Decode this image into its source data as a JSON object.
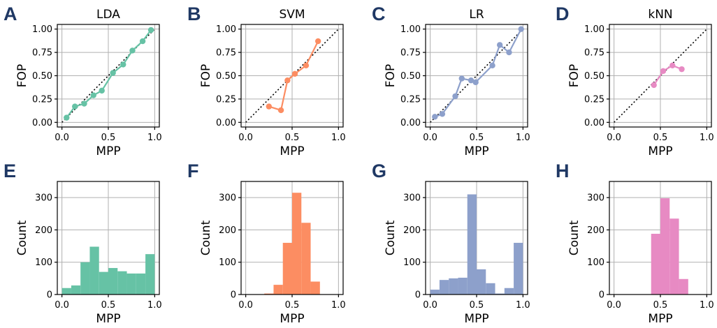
{
  "chart_data": [
    {
      "id": "A",
      "type": "line",
      "title": "LDA",
      "color": "#66c2a5",
      "xlabel": "MPP",
      "ylabel": "FOP",
      "xlim": [
        0,
        1
      ],
      "ylim": [
        0,
        1
      ],
      "xticks": [
        0.0,
        0.5,
        1.0
      ],
      "xtick_labels": [
        "0.0",
        "0.5",
        "1.0"
      ],
      "yticks": [
        0,
        0.25,
        0.5,
        0.75,
        1.0
      ],
      "ytick_labels": [
        "0.00",
        "0.25",
        "0.50",
        "0.75",
        "1.00"
      ],
      "reference_line": "y=x dotted",
      "x": [
        0.05,
        0.14,
        0.24,
        0.34,
        0.43,
        0.55,
        0.66,
        0.76,
        0.87,
        0.96
      ],
      "y": [
        0.05,
        0.17,
        0.2,
        0.29,
        0.34,
        0.53,
        0.62,
        0.77,
        0.87,
        0.99
      ]
    },
    {
      "id": "B",
      "type": "line",
      "title": "SVM",
      "color": "#fc8d62",
      "xlabel": "MPP",
      "ylabel": "FOP",
      "xlim": [
        0,
        1
      ],
      "ylim": [
        0,
        1
      ],
      "xticks": [
        0.0,
        0.5,
        1.0
      ],
      "xtick_labels": [
        "0.0",
        "0.5",
        "1.0"
      ],
      "yticks": [
        0,
        0.25,
        0.5,
        0.75,
        1.0
      ],
      "ytick_labels": [
        "0.00",
        "0.25",
        "0.50",
        "0.75",
        "1.00"
      ],
      "reference_line": "y=x dotted",
      "x": [
        0.25,
        0.38,
        0.45,
        0.53,
        0.65,
        0.78
      ],
      "y": [
        0.17,
        0.13,
        0.45,
        0.52,
        0.61,
        0.87
      ]
    },
    {
      "id": "C",
      "type": "line",
      "title": "LR",
      "color": "#8da0cb",
      "xlabel": "MPP",
      "ylabel": "FOP",
      "xlim": [
        0,
        1
      ],
      "ylim": [
        0,
        1
      ],
      "xticks": [
        0.0,
        0.5,
        1.0
      ],
      "xtick_labels": [
        "0.0",
        "0.5",
        "1.0"
      ],
      "yticks": [
        0,
        0.25,
        0.5,
        0.75,
        1.0
      ],
      "ytick_labels": [
        "0.00",
        "0.25",
        "0.50",
        "0.75",
        "1.00"
      ],
      "reference_line": "y=x dotted",
      "x": [
        0.05,
        0.13,
        0.27,
        0.34,
        0.44,
        0.49,
        0.67,
        0.75,
        0.85,
        0.98
      ],
      "y": [
        0.06,
        0.09,
        0.28,
        0.47,
        0.45,
        0.43,
        0.61,
        0.83,
        0.75,
        1.0
      ]
    },
    {
      "id": "D",
      "type": "line",
      "title": "kNN",
      "color": "#e78ac3",
      "xlabel": "MPP",
      "ylabel": "FOP",
      "xlim": [
        0,
        1
      ],
      "ylim": [
        0,
        1
      ],
      "xticks": [
        0.0,
        0.5,
        1.0
      ],
      "xtick_labels": [
        "0.0",
        "0.5",
        "1.0"
      ],
      "yticks": [
        0,
        0.25,
        0.5,
        0.75,
        1.0
      ],
      "ytick_labels": [
        "0.00",
        "0.25",
        "0.50",
        "0.75",
        "1.00"
      ],
      "reference_line": "y=x dotted",
      "x": [
        0.43,
        0.53,
        0.63,
        0.73
      ],
      "y": [
        0.4,
        0.55,
        0.61,
        0.57
      ]
    },
    {
      "id": "E",
      "type": "bar",
      "title": "",
      "color": "#66c2a5",
      "xlabel": "MPP",
      "ylabel": "Count",
      "xlim": [
        0,
        1
      ],
      "ylim": [
        0,
        350
      ],
      "xticks": [
        0.0,
        0.5,
        1.0
      ],
      "xtick_labels": [
        "0.0",
        "0.5",
        "1.0"
      ],
      "yticks": [
        0,
        100,
        200,
        300
      ],
      "ytick_labels": [
        "0",
        "100",
        "200",
        "300"
      ],
      "bin_edges": [
        0.0,
        0.1,
        0.2,
        0.3,
        0.4,
        0.5,
        0.6,
        0.7,
        0.8,
        0.9,
        1.0
      ],
      "values": [
        20,
        28,
        100,
        148,
        70,
        82,
        72,
        65,
        65,
        125
      ]
    },
    {
      "id": "F",
      "type": "bar",
      "title": "",
      "color": "#fc8d62",
      "xlabel": "MPP",
      "ylabel": "Count",
      "xlim": [
        0,
        1
      ],
      "ylim": [
        0,
        350
      ],
      "xticks": [
        0.0,
        0.5,
        1.0
      ],
      "xtick_labels": [
        "0.0",
        "0.5",
        "1.0"
      ],
      "yticks": [
        0,
        100,
        200,
        300
      ],
      "ytick_labels": [
        "0",
        "100",
        "200",
        "300"
      ],
      "bin_edges": [
        0.0,
        0.1,
        0.2,
        0.3,
        0.4,
        0.5,
        0.6,
        0.7,
        0.8,
        0.9,
        1.0
      ],
      "values": [
        0,
        0,
        3,
        30,
        160,
        315,
        222,
        40,
        0,
        0
      ]
    },
    {
      "id": "G",
      "type": "bar",
      "title": "",
      "color": "#8da0cb",
      "xlabel": "MPP",
      "ylabel": "Count",
      "xlim": [
        0,
        1
      ],
      "ylim": [
        0,
        350
      ],
      "xticks": [
        0.0,
        0.5,
        1.0
      ],
      "xtick_labels": [
        "0.0",
        "0.5",
        "1.0"
      ],
      "yticks": [
        0,
        100,
        200,
        300
      ],
      "ytick_labels": [
        "0",
        "100",
        "200",
        "300"
      ],
      "bin_edges": [
        0.0,
        0.1,
        0.2,
        0.3,
        0.4,
        0.5,
        0.6,
        0.7,
        0.8,
        0.9,
        1.0
      ],
      "values": [
        15,
        45,
        50,
        52,
        310,
        78,
        35,
        3,
        20,
        160
      ]
    },
    {
      "id": "H",
      "type": "bar",
      "title": "",
      "color": "#e78ac3",
      "xlabel": "MPP",
      "ylabel": "Count",
      "xlim": [
        0,
        1
      ],
      "ylim": [
        0,
        350
      ],
      "xticks": [
        0.0,
        0.5,
        1.0
      ],
      "xtick_labels": [
        "0.0",
        "0.5",
        "1.0"
      ],
      "yticks": [
        0,
        100,
        200,
        300
      ],
      "ytick_labels": [
        "0",
        "100",
        "200",
        "300"
      ],
      "bin_edges": [
        0.0,
        0.1,
        0.2,
        0.3,
        0.4,
        0.5,
        0.6,
        0.7,
        0.8,
        0.9,
        1.0
      ],
      "values": [
        0,
        0,
        0,
        0,
        188,
        298,
        235,
        48,
        0,
        0
      ]
    }
  ]
}
